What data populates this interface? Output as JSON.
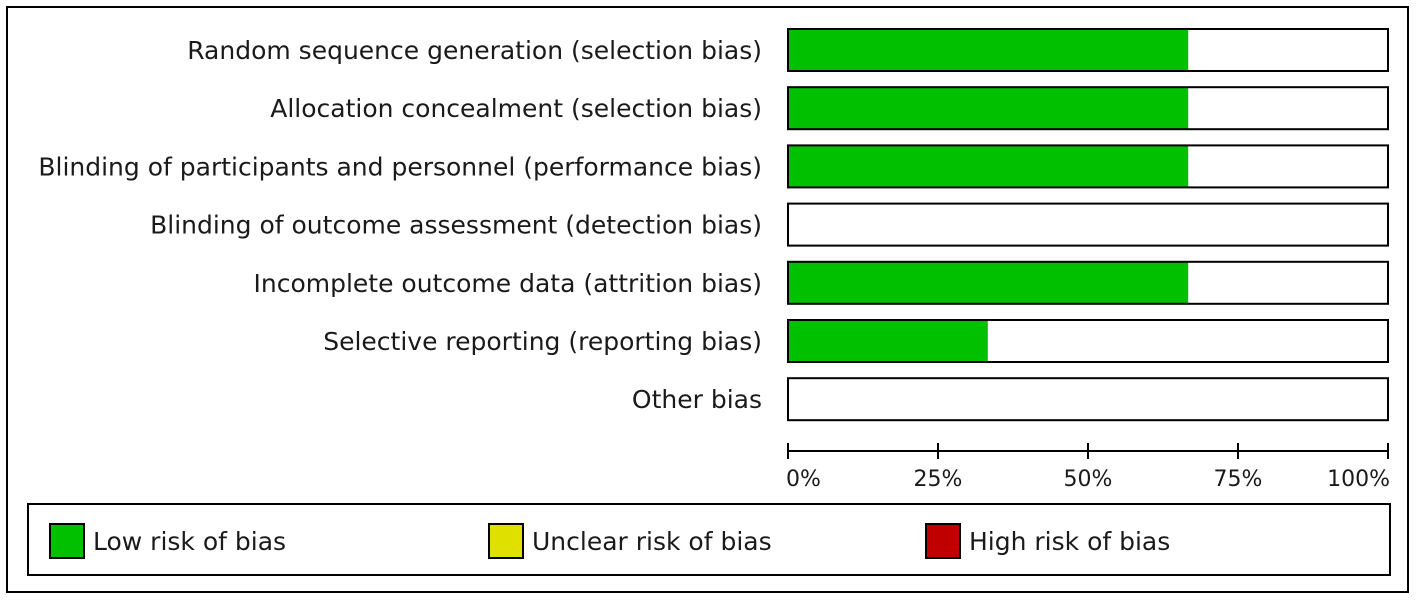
{
  "chart_data": {
    "type": "bar",
    "orientation": "horizontal",
    "stacked": true,
    "categories": [
      "Random sequence generation (selection bias)",
      "Allocation concealment (selection bias)",
      "Blinding of participants and personnel (performance bias)",
      "Blinding of outcome assessment (detection bias)",
      "Incomplete outcome data (attrition bias)",
      "Selective reporting (reporting bias)",
      "Other bias"
    ],
    "series": [
      {
        "name": "Low risk of bias",
        "values": [
          66.7,
          66.7,
          66.7,
          0,
          66.7,
          33.3,
          0
        ],
        "color": "#00c000"
      },
      {
        "name": "Unclear risk of bias",
        "values": [
          0,
          0,
          0,
          0,
          0,
          0,
          0
        ],
        "color": "#e0e000"
      },
      {
        "name": "High risk of bias",
        "values": [
          0,
          0,
          0,
          0,
          0,
          0,
          0
        ],
        "color": "#c00000"
      }
    ],
    "xlim": [
      0,
      100
    ],
    "xticks": [
      "0%",
      "25%",
      "50%",
      "75%",
      "100%"
    ],
    "grid": false,
    "legend_position": "bottom"
  },
  "legend": {
    "items": [
      {
        "label": "Low risk of bias",
        "color": "#00c000"
      },
      {
        "label": "Unclear risk of bias",
        "color": "#e0e000"
      },
      {
        "label": "High risk of bias",
        "color": "#c00000"
      }
    ]
  }
}
